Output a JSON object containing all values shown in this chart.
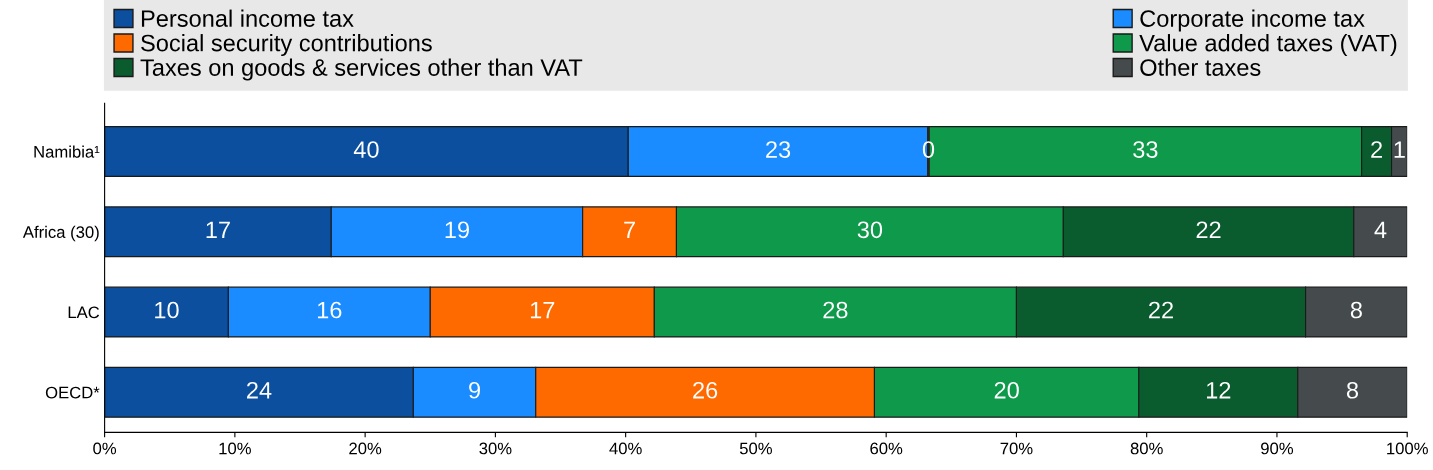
{
  "chart_data": {
    "type": "bar",
    "orientation": "horizontal",
    "stacked": true,
    "categories": [
      "Namibia¹",
      "Africa (30)",
      "LAC",
      "OECD*"
    ],
    "series": [
      {
        "name": "Personal income tax",
        "color": "#0b4f9e",
        "values": [
          40.2,
          17.4,
          9.5,
          23.7
        ],
        "value_labels": [
          "40",
          "17",
          "10",
          "24"
        ]
      },
      {
        "name": "Corporate income tax",
        "color": "#1a8cff",
        "values": [
          23.0,
          19.3,
          15.5,
          9.4
        ],
        "value_labels": [
          "23",
          "19",
          "16",
          "9"
        ]
      },
      {
        "name": "Social security contributions",
        "color": "#ff6a00",
        "values": [
          0.1,
          7.2,
          17.2,
          26.0
        ],
        "value_labels": [
          "0",
          "7",
          "17",
          "26"
        ]
      },
      {
        "name": "Value added taxes (VAT)",
        "color": "#0e9a4a",
        "values": [
          33.2,
          29.7,
          27.8,
          20.3
        ],
        "value_labels": [
          "33",
          "30",
          "28",
          "20"
        ]
      },
      {
        "name": "Taxes on goods & services other than VAT",
        "color": "#0a5c2e",
        "values": [
          2.3,
          22.3,
          22.2,
          12.2
        ],
        "value_labels": [
          "2",
          "22",
          "22",
          "12"
        ]
      },
      {
        "name": "Other taxes",
        "color": "#454b4d",
        "values": [
          1.2,
          4.1,
          7.8,
          8.4
        ],
        "value_labels": [
          "1",
          "4",
          "8",
          "8"
        ]
      }
    ],
    "xlim": [
      0,
      100
    ],
    "xticks": [
      {
        "value": 0,
        "label": "0%"
      },
      {
        "value": 10,
        "label": "10%"
      },
      {
        "value": 20,
        "label": "20%"
      },
      {
        "value": 30,
        "label": "30%"
      },
      {
        "value": 40,
        "label": "40%"
      },
      {
        "value": 50,
        "label": "50%"
      },
      {
        "value": 60,
        "label": "60%"
      },
      {
        "value": 70,
        "label": "70%"
      },
      {
        "value": 80,
        "label": "80%"
      },
      {
        "value": 90,
        "label": "90%"
      },
      {
        "value": 100,
        "label": "100%"
      }
    ],
    "grid": false,
    "legend": "top"
  }
}
